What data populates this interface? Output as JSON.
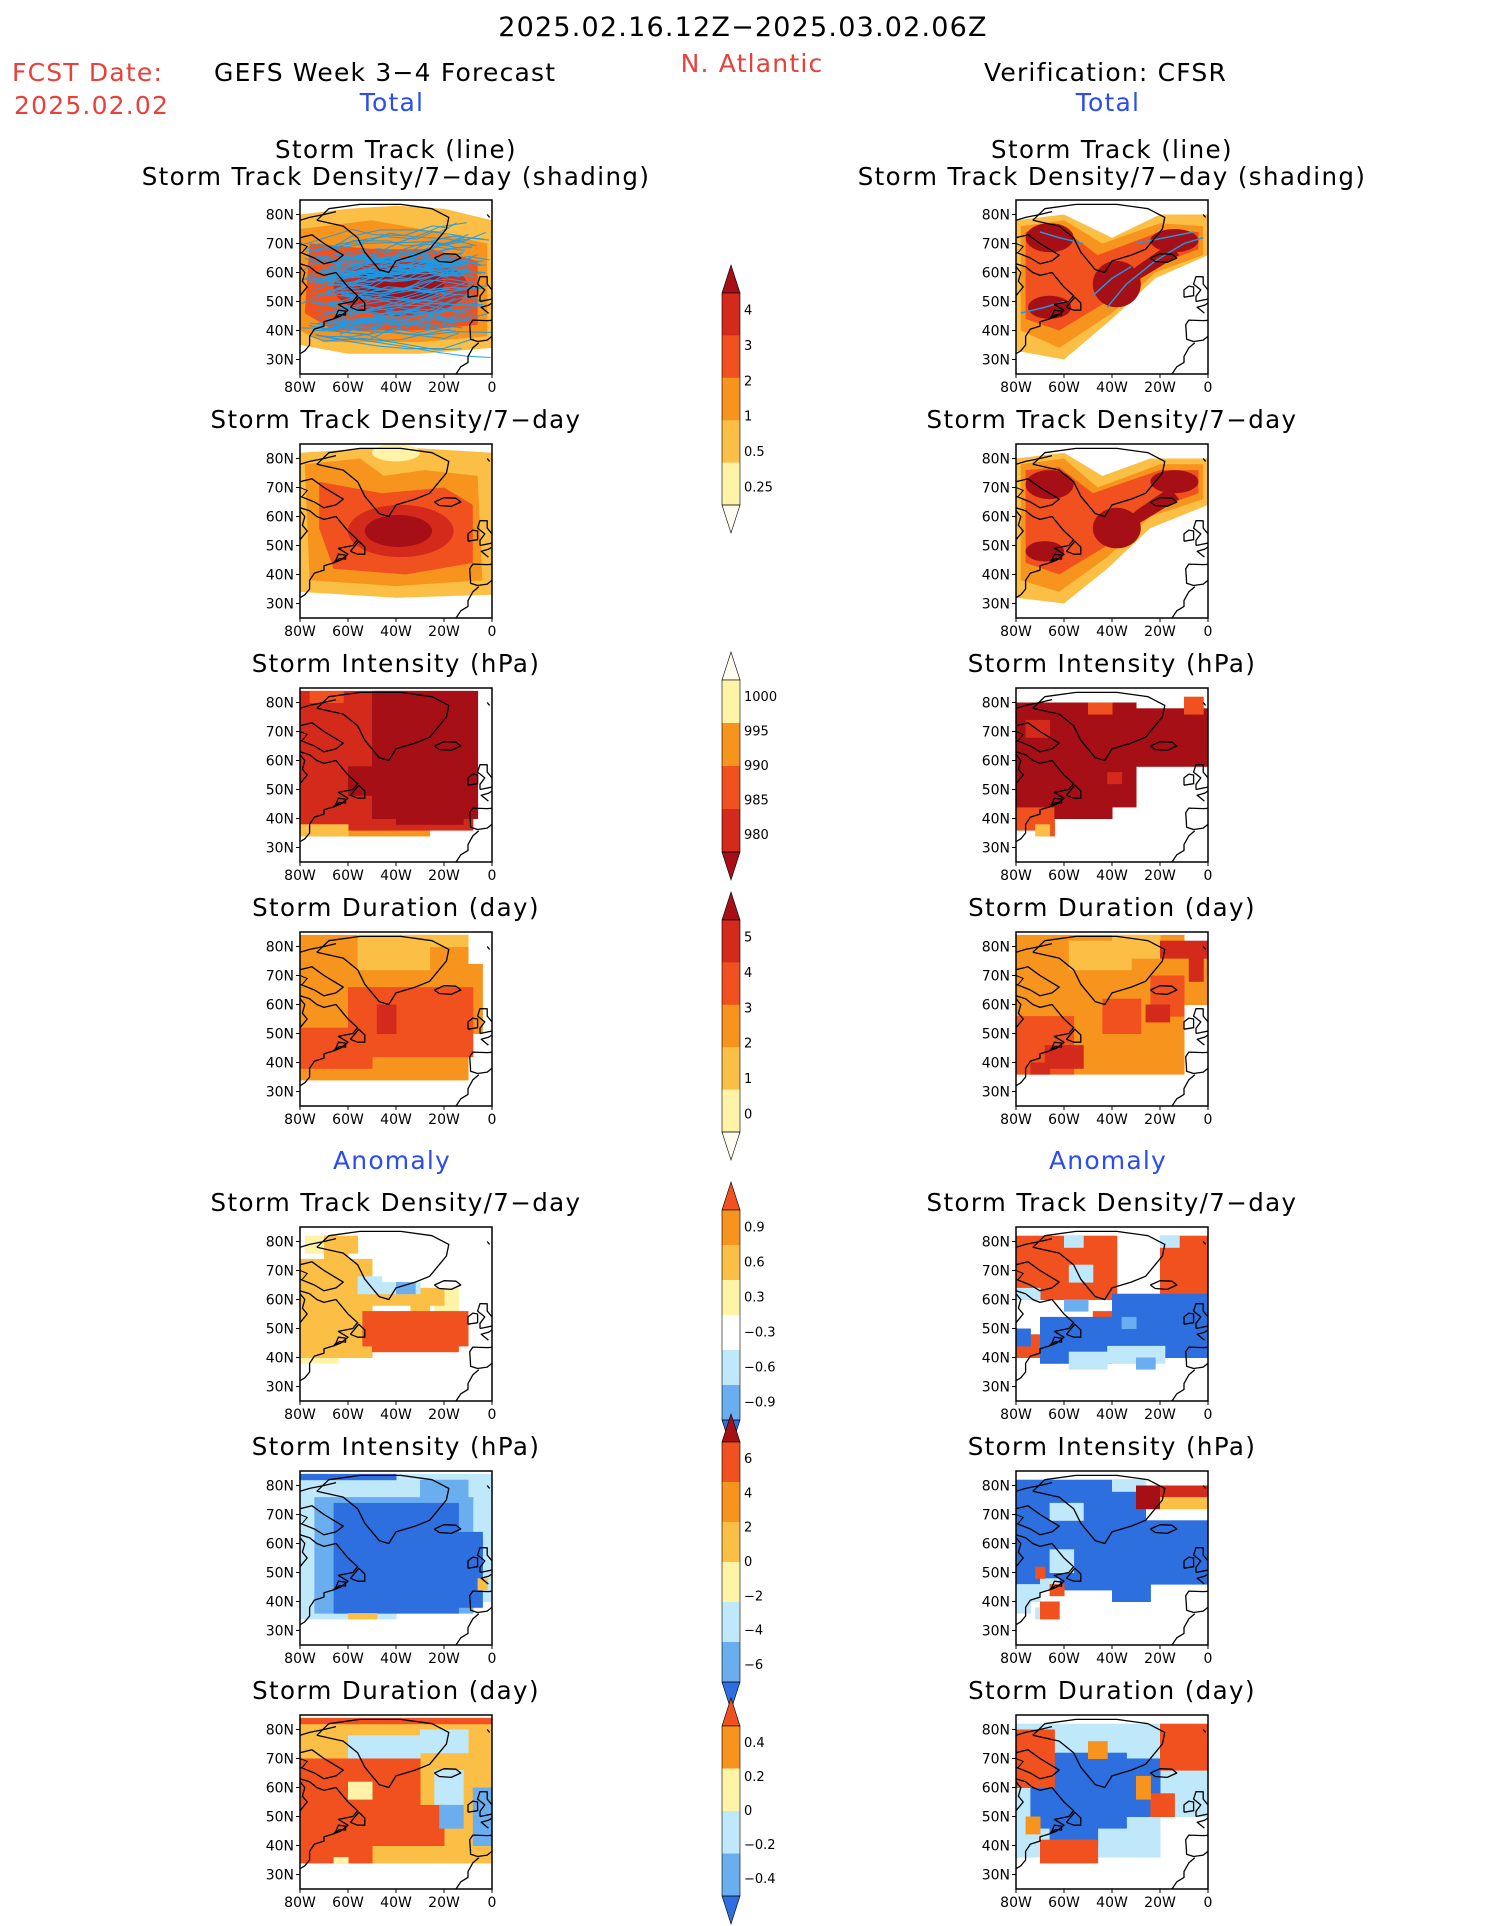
{
  "header": {
    "period": "2025.02.16.12Z−2025.03.02.06Z",
    "fcst_label": "FCST Date:",
    "fcst_date": "2025.02.02",
    "product": "GEFS Week 3−4 Forecast",
    "region": "N. Atlantic",
    "verification": "Verification: CFSR"
  },
  "sections": {
    "total": "Total",
    "anomaly": "Anomaly"
  },
  "panel_titles": {
    "track_line": "Storm Track (line)",
    "track_shading": "Storm Track Density/7−day (shading)",
    "density": "Storm Track Density/7−day",
    "intensity": "Storm Intensity (hPa)",
    "duration": "Storm Duration (day)"
  },
  "axes": {
    "lat_labels": [
      "80N",
      "70N",
      "60N",
      "50N",
      "40N",
      "30N"
    ],
    "lon_labels": [
      "80W",
      "60W",
      "40W",
      "20W",
      "0"
    ]
  },
  "colorbars": [
    {
      "id": "density_total",
      "labels": [
        "4",
        "3",
        "2",
        "1",
        "0.5",
        "0.25"
      ]
    },
    {
      "id": "intensity_total",
      "labels": [
        "1000",
        "995",
        "990",
        "985",
        "980"
      ]
    },
    {
      "id": "duration_total",
      "labels": [
        "5",
        "4",
        "3",
        "2",
        "1",
        "0"
      ]
    },
    {
      "id": "density_anom",
      "labels": [
        "0.9",
        "0.6",
        "0.3",
        "−0.3",
        "−0.6",
        "−0.9"
      ]
    },
    {
      "id": "intensity_anom",
      "labels": [
        "6",
        "4",
        "2",
        "0",
        "−2",
        "−4",
        "−6"
      ]
    },
    {
      "id": "duration_anom",
      "labels": [
        "0.4",
        "0.2",
        "0",
        "−0.2",
        "−0.4"
      ]
    }
  ],
  "colors": {
    "title_red": "#e8413b",
    "section_blue": "#2a4cf0",
    "dark_red": "#a50f15",
    "red": "#d42a1b",
    "orange_red": "#f0511f",
    "orange": "#f7941d",
    "light_orange": "#fbbf45",
    "yellow": "#fff3a8",
    "light_blue": "#bfe8fb",
    "mid_blue": "#6aaef0",
    "blue": "#2d6fdf",
    "track_blue": "#1e9be6"
  }
}
